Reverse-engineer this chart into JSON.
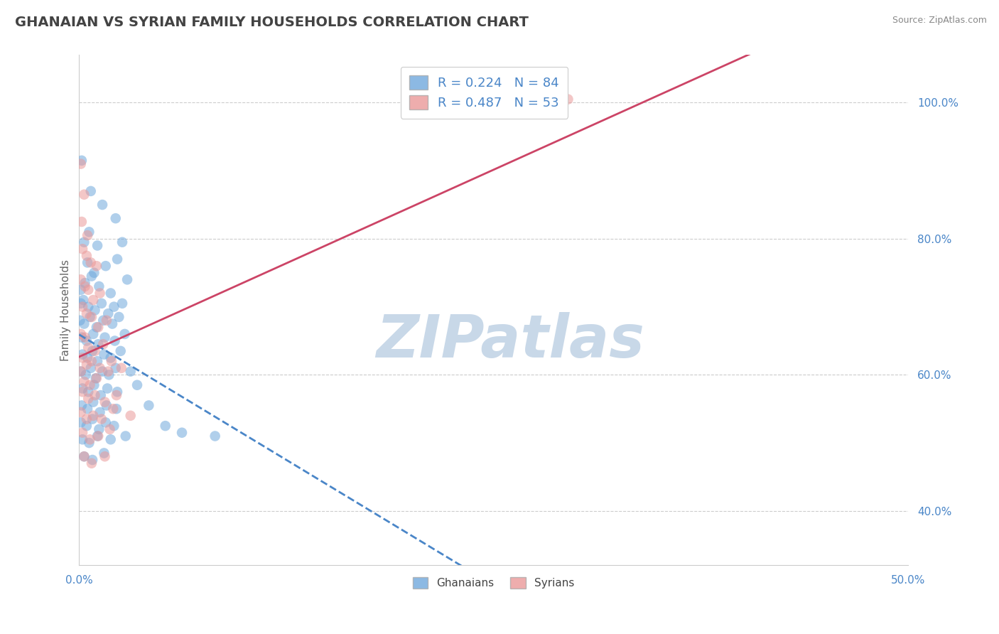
{
  "title": "GHANAIAN VS SYRIAN FAMILY HOUSEHOLDS CORRELATION CHART",
  "source": "Source: ZipAtlas.com",
  "ylabel": "Family Households",
  "axis_label_color": "#4a86c8",
  "title_color": "#434343",
  "source_color": "#888888",
  "ghanaian_color": "#6fa8dc",
  "syrian_color": "#ea9999",
  "ghanaian_line_color": "#4a86c8",
  "syrian_line_color": "#cc4466",
  "ghanaian_R": 0.224,
  "ghanaian_N": 84,
  "syrian_R": 0.487,
  "syrian_N": 53,
  "watermark": "ZIPatlas",
  "watermark_color": "#c8d8e8",
  "legend_label_ghanaians": "Ghanaians",
  "legend_label_syrians": "Syrians",
  "xlim": [
    0.0,
    50.0
  ],
  "ylim": [
    32.0,
    107.0
  ],
  "ytick_vals": [
    40.0,
    60.0,
    80.0,
    100.0
  ],
  "xtick_vals": [
    0.0,
    50.0
  ],
  "title_fontsize": 14,
  "axis_fontsize": 11,
  "legend_fontsize": 13,
  "grid_color": "#cccccc",
  "background_color": "#ffffff",
  "ghanaian_scatter": [
    [
      0.15,
      91.5
    ],
    [
      0.7,
      87.0
    ],
    [
      1.4,
      85.0
    ],
    [
      2.2,
      83.0
    ],
    [
      0.3,
      79.5
    ],
    [
      0.6,
      81.0
    ],
    [
      1.1,
      79.0
    ],
    [
      2.6,
      79.5
    ],
    [
      0.5,
      76.5
    ],
    [
      0.9,
      75.0
    ],
    [
      1.6,
      76.0
    ],
    [
      2.3,
      77.0
    ],
    [
      0.1,
      72.5
    ],
    [
      0.35,
      73.5
    ],
    [
      0.75,
      74.5
    ],
    [
      1.2,
      73.0
    ],
    [
      1.9,
      72.0
    ],
    [
      2.9,
      74.0
    ],
    [
      0.1,
      70.5
    ],
    [
      0.25,
      71.0
    ],
    [
      0.55,
      70.0
    ],
    [
      0.95,
      69.5
    ],
    [
      1.35,
      70.5
    ],
    [
      1.75,
      69.0
    ],
    [
      2.1,
      70.0
    ],
    [
      2.6,
      70.5
    ],
    [
      0.05,
      68.0
    ],
    [
      0.3,
      67.5
    ],
    [
      0.65,
      68.5
    ],
    [
      1.05,
      67.0
    ],
    [
      1.45,
      68.0
    ],
    [
      2.0,
      67.5
    ],
    [
      2.4,
      68.5
    ],
    [
      0.15,
      65.5
    ],
    [
      0.45,
      65.0
    ],
    [
      0.85,
      66.0
    ],
    [
      1.15,
      64.5
    ],
    [
      1.55,
      65.5
    ],
    [
      2.15,
      65.0
    ],
    [
      2.75,
      66.0
    ],
    [
      0.2,
      63.0
    ],
    [
      0.5,
      62.5
    ],
    [
      0.8,
      63.5
    ],
    [
      1.1,
      62.0
    ],
    [
      1.5,
      63.0
    ],
    [
      1.9,
      62.5
    ],
    [
      2.5,
      63.5
    ],
    [
      0.1,
      60.5
    ],
    [
      0.4,
      60.0
    ],
    [
      0.7,
      61.0
    ],
    [
      1.0,
      59.5
    ],
    [
      1.4,
      60.5
    ],
    [
      1.8,
      60.0
    ],
    [
      2.2,
      61.0
    ],
    [
      3.1,
      60.5
    ],
    [
      0.2,
      58.0
    ],
    [
      0.55,
      57.5
    ],
    [
      0.9,
      58.5
    ],
    [
      1.3,
      57.0
    ],
    [
      1.7,
      58.0
    ],
    [
      2.3,
      57.5
    ],
    [
      3.5,
      58.5
    ],
    [
      0.15,
      55.5
    ],
    [
      0.5,
      55.0
    ],
    [
      0.85,
      56.0
    ],
    [
      1.25,
      54.5
    ],
    [
      1.65,
      55.5
    ],
    [
      2.25,
      55.0
    ],
    [
      4.2,
      55.5
    ],
    [
      0.1,
      53.0
    ],
    [
      0.45,
      52.5
    ],
    [
      0.8,
      53.5
    ],
    [
      1.2,
      52.0
    ],
    [
      1.6,
      53.0
    ],
    [
      2.1,
      52.5
    ],
    [
      5.2,
      52.5
    ],
    [
      0.2,
      50.5
    ],
    [
      0.6,
      50.0
    ],
    [
      1.1,
      51.0
    ],
    [
      1.9,
      50.5
    ],
    [
      2.8,
      51.0
    ],
    [
      6.2,
      51.5
    ],
    [
      0.3,
      48.0
    ],
    [
      0.8,
      47.5
    ],
    [
      1.5,
      48.5
    ],
    [
      8.2,
      51.0
    ]
  ],
  "syrian_scatter": [
    [
      0.1,
      91.0
    ],
    [
      0.3,
      86.5
    ],
    [
      0.15,
      82.5
    ],
    [
      0.5,
      80.5
    ],
    [
      0.2,
      78.5
    ],
    [
      0.45,
      77.5
    ],
    [
      0.7,
      76.5
    ],
    [
      1.05,
      76.0
    ],
    [
      0.1,
      74.0
    ],
    [
      0.35,
      73.0
    ],
    [
      0.55,
      72.5
    ],
    [
      0.85,
      71.0
    ],
    [
      1.25,
      72.0
    ],
    [
      0.2,
      70.0
    ],
    [
      0.45,
      69.0
    ],
    [
      0.75,
      68.5
    ],
    [
      1.15,
      67.0
    ],
    [
      1.65,
      68.0
    ],
    [
      0.1,
      66.0
    ],
    [
      0.35,
      65.5
    ],
    [
      0.55,
      64.0
    ],
    [
      0.95,
      63.5
    ],
    [
      1.45,
      64.5
    ],
    [
      0.2,
      62.5
    ],
    [
      0.45,
      61.5
    ],
    [
      0.75,
      62.0
    ],
    [
      1.25,
      61.0
    ],
    [
      1.95,
      62.0
    ],
    [
      0.1,
      60.5
    ],
    [
      0.3,
      59.0
    ],
    [
      0.65,
      58.5
    ],
    [
      1.05,
      59.5
    ],
    [
      1.75,
      60.5
    ],
    [
      2.55,
      61.0
    ],
    [
      0.2,
      57.5
    ],
    [
      0.55,
      56.5
    ],
    [
      0.95,
      57.0
    ],
    [
      1.55,
      56.0
    ],
    [
      2.25,
      57.0
    ],
    [
      0.1,
      54.5
    ],
    [
      0.45,
      53.5
    ],
    [
      0.85,
      54.0
    ],
    [
      1.35,
      53.5
    ],
    [
      2.05,
      55.0
    ],
    [
      0.2,
      51.5
    ],
    [
      0.65,
      50.5
    ],
    [
      1.15,
      51.0
    ],
    [
      1.85,
      52.0
    ],
    [
      3.1,
      54.0
    ],
    [
      0.3,
      48.0
    ],
    [
      0.75,
      47.0
    ],
    [
      1.55,
      48.0
    ],
    [
      29.5,
      100.5
    ]
  ]
}
